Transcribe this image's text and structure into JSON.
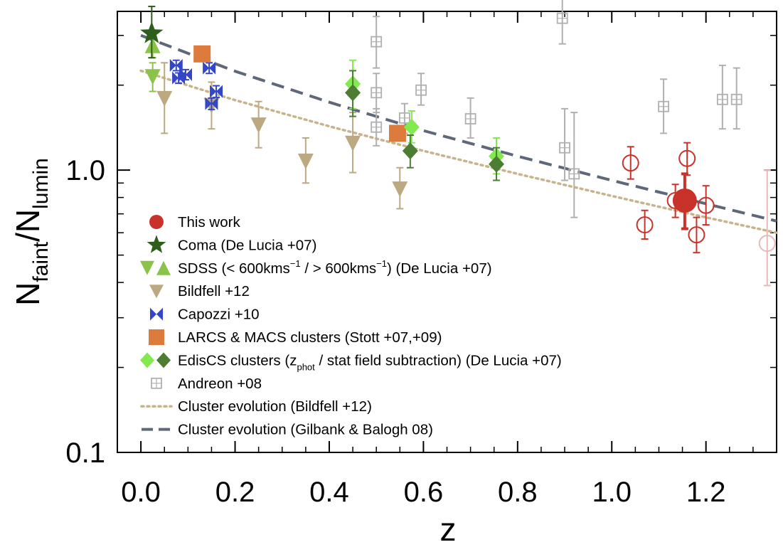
{
  "chart_data": {
    "type": "scatter",
    "x_axis": {
      "label": "z",
      "range": [
        -0.05,
        1.35
      ],
      "ticks": [
        "0.0",
        "0.2",
        "0.4",
        "0.6",
        "0.8",
        "1.0",
        "1.2"
      ],
      "tick_values": [
        0.0,
        0.2,
        0.4,
        0.6,
        0.8,
        1.0,
        1.2
      ]
    },
    "y_axis": {
      "label_main": "N",
      "label_sub1": "faint",
      "label_mid": "/N",
      "label_sub2": "lumin",
      "scale": "log",
      "range": [
        0.1,
        3.65
      ],
      "ticks": [
        "0.1",
        "1.0"
      ],
      "tick_values": [
        0.1,
        1.0
      ]
    },
    "legend": {
      "placement": "lower-left",
      "entries": [
        {
          "id": "this-work",
          "label": "This work"
        },
        {
          "id": "coma",
          "label": "Coma (De Lucia +07)"
        },
        {
          "id": "sdss",
          "label": "SDSS (< 600kms",
          "sup1": "−1",
          "mid": " / > 600kms",
          "sup2": "−1",
          "tail": ") (De Lucia +07)"
        },
        {
          "id": "bildfell",
          "label": "Bildfell +12"
        },
        {
          "id": "capozzi",
          "label": "Capozzi +10"
        },
        {
          "id": "larcs",
          "label": "LARCS & MACS clusters (Stott +07,+09)"
        },
        {
          "id": "ediscs",
          "label": "EdisCS clusters (z",
          "sub": "phot",
          "tail": " / stat field subtraction) (De Lucia +07)"
        },
        {
          "id": "andreon",
          "label": "Andreon +08"
        },
        {
          "id": "bildfell-evolution",
          "label": "Cluster evolution (Bildfell +12)"
        },
        {
          "id": "gilbank-evolution",
          "label": "Cluster evolution (Gilbank & Balogh 08)"
        }
      ]
    },
    "series": [
      {
        "id": "this-work-filled",
        "points": [
          {
            "x": 1.155,
            "y": 0.78,
            "ylo": 0.62,
            "yhi": 0.97
          }
        ]
      },
      {
        "id": "this-work-open",
        "points": [
          {
            "x": 1.04,
            "y": 1.06,
            "ylo": 0.93,
            "yhi": 1.21
          },
          {
            "x": 1.07,
            "y": 0.64,
            "ylo": 0.57,
            "yhi": 0.72
          },
          {
            "x": 1.135,
            "y": 0.78,
            "ylo": 0.68,
            "yhi": 0.89
          },
          {
            "x": 1.16,
            "y": 1.1,
            "ylo": 0.96,
            "yhi": 1.25
          },
          {
            "x": 1.18,
            "y": 0.59,
            "ylo": 0.51,
            "yhi": 0.68
          },
          {
            "x": 1.2,
            "y": 0.75,
            "ylo": 0.64,
            "yhi": 0.88
          }
        ]
      },
      {
        "id": "this-work-pale",
        "points": [
          {
            "x": 1.33,
            "y": 0.55,
            "ylo": 0.39,
            "yhi": 1.0
          }
        ]
      },
      {
        "id": "coma",
        "points": [
          {
            "x": 0.023,
            "y": 3.05,
            "ylo": 2.5,
            "yhi": 3.8
          }
        ]
      },
      {
        "id": "sdss-low",
        "points": [
          {
            "x": 0.025,
            "y": 2.15,
            "ylo": 1.9,
            "yhi": 2.4
          }
        ]
      },
      {
        "id": "sdss-high",
        "points": [
          {
            "x": 0.025,
            "y": 2.75,
            "ylo": 2.5,
            "yhi": 3.05
          }
        ]
      },
      {
        "id": "bildfell",
        "points": [
          {
            "x": 0.05,
            "y": 1.8,
            "ylo": 1.35,
            "yhi": 2.4
          },
          {
            "x": 0.15,
            "y": 1.7,
            "ylo": 1.4,
            "yhi": 2.05
          },
          {
            "x": 0.25,
            "y": 1.45,
            "ylo": 1.2,
            "yhi": 1.75
          },
          {
            "x": 0.35,
            "y": 1.08,
            "ylo": 0.9,
            "yhi": 1.3
          },
          {
            "x": 0.45,
            "y": 1.25,
            "ylo": 0.98,
            "yhi": 1.6
          },
          {
            "x": 0.55,
            "y": 0.86,
            "ylo": 0.73,
            "yhi": 1.02
          }
        ]
      },
      {
        "id": "capozzi",
        "points": [
          {
            "x": 0.075,
            "y": 2.35,
            "ylo": 2.25,
            "yhi": 2.45
          },
          {
            "x": 0.08,
            "y": 2.12,
            "ylo": 2.03,
            "yhi": 2.21
          },
          {
            "x": 0.095,
            "y": 2.18,
            "ylo": 2.09,
            "yhi": 2.27
          },
          {
            "x": 0.145,
            "y": 2.3,
            "ylo": 2.2,
            "yhi": 2.4
          },
          {
            "x": 0.15,
            "y": 1.72,
            "ylo": 1.64,
            "yhi": 1.8
          },
          {
            "x": 0.16,
            "y": 1.9,
            "ylo": 1.81,
            "yhi": 1.99
          }
        ]
      },
      {
        "id": "larcs",
        "points": [
          {
            "x": 0.13,
            "y": 2.58,
            "ylo": 2.45,
            "yhi": 2.72
          },
          {
            "x": 0.545,
            "y": 1.35,
            "ylo": 1.28,
            "yhi": 1.43
          }
        ]
      },
      {
        "id": "ediscs-phot",
        "points": [
          {
            "x": 0.45,
            "y": 2.02,
            "ylo": 1.65,
            "yhi": 2.45
          },
          {
            "x": 0.575,
            "y": 1.42,
            "ylo": 1.25,
            "yhi": 1.62
          },
          {
            "x": 0.755,
            "y": 1.12,
            "ylo": 0.97,
            "yhi": 1.3
          }
        ]
      },
      {
        "id": "ediscs-stat",
        "points": [
          {
            "x": 0.45,
            "y": 1.88,
            "ylo": 1.55,
            "yhi": 2.25
          },
          {
            "x": 0.572,
            "y": 1.17,
            "ylo": 1.02,
            "yhi": 1.33
          },
          {
            "x": 0.755,
            "y": 1.05,
            "ylo": 0.92,
            "yhi": 1.2
          }
        ]
      },
      {
        "id": "andreon",
        "points": [
          {
            "x": 0.5,
            "y": 2.85,
            "ylo": 2.3,
            "yhi": 3.5
          },
          {
            "x": 0.5,
            "y": 1.88,
            "ylo": 1.6,
            "yhi": 2.2
          },
          {
            "x": 0.5,
            "y": 1.42,
            "ylo": 1.22,
            "yhi": 1.65
          },
          {
            "x": 0.56,
            "y": 1.53,
            "ylo": 1.35,
            "yhi": 1.72
          },
          {
            "x": 0.595,
            "y": 1.92,
            "ylo": 1.7,
            "yhi": 2.2
          },
          {
            "x": 0.7,
            "y": 1.52,
            "ylo": 1.3,
            "yhi": 1.8
          },
          {
            "x": 0.895,
            "y": 3.45,
            "ylo": 2.8,
            "yhi": 4.2
          },
          {
            "x": 0.9,
            "y": 1.2,
            "ylo": 0.92,
            "yhi": 1.65
          },
          {
            "x": 0.92,
            "y": 0.97,
            "ylo": 0.68,
            "yhi": 1.6
          },
          {
            "x": 1.11,
            "y": 1.68,
            "ylo": 1.35,
            "yhi": 2.1
          },
          {
            "x": 1.235,
            "y": 1.78,
            "ylo": 1.4,
            "yhi": 2.35
          },
          {
            "x": 1.265,
            "y": 1.78,
            "ylo": 1.4,
            "yhi": 2.3
          }
        ]
      }
    ],
    "curves": [
      {
        "id": "bildfell-evolution",
        "style": "dotted",
        "x": [
          0.0,
          0.2,
          0.4,
          0.6,
          0.8,
          1.0,
          1.2,
          1.35
        ],
        "y": [
          2.25,
          1.77,
          1.43,
          1.17,
          0.97,
          0.81,
          0.68,
          0.6
        ]
      },
      {
        "id": "gilbank-evolution",
        "style": "dashed",
        "x": [
          0.0,
          0.2,
          0.4,
          0.6,
          0.8,
          1.0,
          1.2,
          1.35
        ],
        "y": [
          3.0,
          2.24,
          1.74,
          1.38,
          1.12,
          0.92,
          0.76,
          0.66
        ]
      }
    ],
    "colors": {
      "this_work": "#c8322a",
      "this_work_pale": "#e8b8bb",
      "coma": "#2e5e1c",
      "sdss": "#8bc34a",
      "bildfell": "#bca881",
      "capozzi": "#3346c8",
      "larcs": "#dd7b3d",
      "ediscs_phot": "#84e84f",
      "ediscs_stat": "#4d7d32",
      "andreon": "#b0b0b0",
      "bildfell_curve": "#c8b48c",
      "gilbank_curve": "#5e6878"
    }
  }
}
